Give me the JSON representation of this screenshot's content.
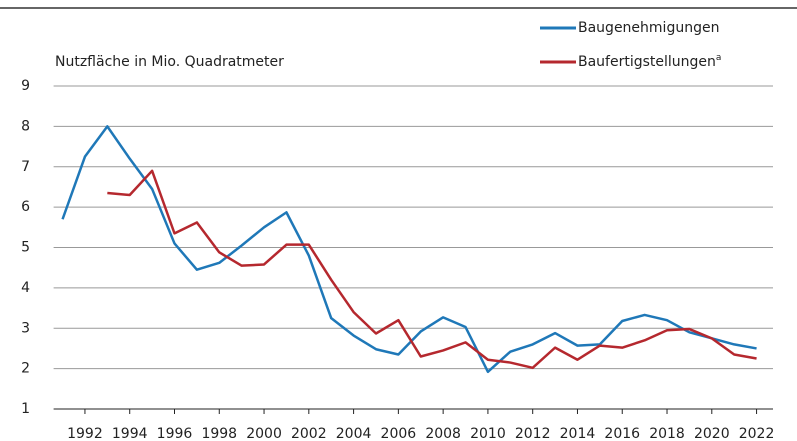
{
  "chart_data": {
    "type": "line",
    "y_axis_label": "Nutzfläche in Mio. Quadratmeter",
    "x": [
      1991,
      1992,
      1993,
      1994,
      1995,
      1996,
      1997,
      1998,
      1999,
      2000,
      2001,
      2002,
      2003,
      2004,
      2005,
      2006,
      2007,
      2008,
      2009,
      2010,
      2011,
      2012,
      2013,
      2014,
      2015,
      2016,
      2017,
      2018,
      2019,
      2020,
      2021,
      2022
    ],
    "series": [
      {
        "name": "Baugenehmigungen",
        "color": "#1f78b8",
        "values": [
          5.7,
          7.25,
          8.0,
          7.2,
          6.45,
          5.1,
          4.45,
          4.62,
          5.05,
          5.5,
          5.87,
          4.8,
          3.25,
          2.82,
          2.48,
          2.35,
          2.92,
          3.27,
          3.03,
          1.92,
          2.42,
          2.6,
          2.88,
          2.57,
          2.6,
          3.18,
          3.33,
          3.2,
          2.9,
          2.75,
          2.6,
          2.5
        ]
      },
      {
        "name": "Baufertigstellungen",
        "name_superscript": "a",
        "color": "#b5282e",
        "values": [
          null,
          null,
          6.35,
          6.3,
          6.9,
          5.35,
          5.62,
          4.88,
          4.55,
          4.58,
          5.07,
          5.07,
          4.2,
          3.4,
          2.87,
          3.2,
          2.3,
          2.45,
          2.65,
          2.22,
          2.15,
          2.02,
          2.52,
          2.22,
          2.57,
          2.52,
          2.7,
          2.95,
          2.98,
          2.75,
          2.35,
          2.25
        ]
      }
    ],
    "xlim": [
      1990.6,
      2022.6
    ],
    "xticks": [
      1992,
      1994,
      1996,
      1998,
      2000,
      2002,
      2004,
      2006,
      2008,
      2010,
      2012,
      2014,
      2016,
      2018,
      2020,
      2022
    ],
    "ylim": [
      1,
      9
    ],
    "yticks": [
      1,
      2,
      3,
      4,
      5,
      6,
      7,
      8,
      9
    ],
    "grid": true
  }
}
